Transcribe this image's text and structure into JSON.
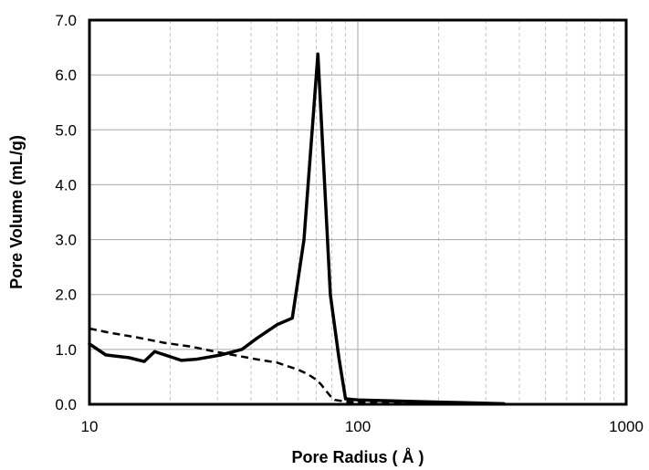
{
  "chart_data": {
    "type": "line",
    "title": "",
    "xlabel": "Pore Radius ( Å )",
    "ylabel": "Pore Volume  (mL/g)",
    "x_scale": "log",
    "xlim": [
      10,
      1000
    ],
    "ylim": [
      0,
      7
    ],
    "x_ticks": [
      10,
      100,
      1000
    ],
    "x_tick_labels": [
      "10",
      "100",
      "1000"
    ],
    "y_ticks": [
      0,
      1,
      2,
      3,
      4,
      5,
      6,
      7
    ],
    "y_tick_labels": [
      "0.0",
      "1.0",
      "2.0",
      "3.0",
      "4.0",
      "5.0",
      "6.0",
      "7.0"
    ],
    "grid": {
      "major_x": true,
      "minor_x": true,
      "major_y": true
    },
    "legend": "none",
    "series": [
      {
        "style": "solid",
        "color": "#000000",
        "x": [
          10,
          11.5,
          14,
          16,
          17.5,
          22,
          25,
          31,
          37,
          42,
          50,
          57,
          63,
          71,
          79,
          85,
          90,
          100,
          200,
          350
        ],
        "y": [
          1.1,
          0.9,
          0.85,
          0.78,
          0.96,
          0.8,
          0.82,
          0.9,
          1.0,
          1.2,
          1.45,
          1.57,
          3.0,
          6.38,
          2.0,
          0.85,
          0.1,
          0.08,
          0.04,
          0.01
        ]
      },
      {
        "style": "dashed",
        "color": "#000000",
        "x": [
          10,
          12,
          15,
          19,
          24,
          30,
          36,
          43,
          50,
          60,
          65,
          70,
          73,
          76,
          79,
          82,
          90,
          100,
          200,
          350
        ],
        "y": [
          1.38,
          1.3,
          1.22,
          1.12,
          1.05,
          0.95,
          0.88,
          0.81,
          0.76,
          0.63,
          0.55,
          0.45,
          0.36,
          0.25,
          0.15,
          0.08,
          0.05,
          0.03,
          0.02,
          0.01
        ]
      }
    ]
  }
}
